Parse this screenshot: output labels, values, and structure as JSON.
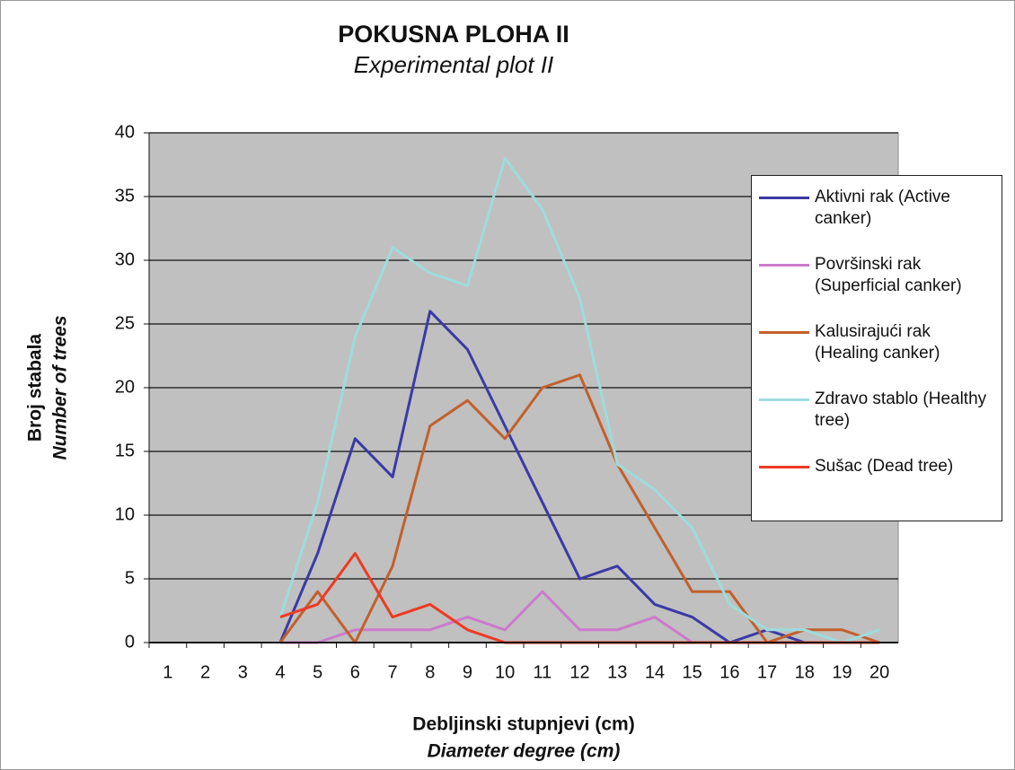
{
  "chart_data": {
    "type": "line",
    "title": "POKUSNA PLOHA II",
    "subtitle": "Experimental plot II",
    "y_label": "Broj stabala",
    "y_label_en": "Number of trees",
    "x_label": "Debljinski stupnjevi (cm)",
    "x_label_en": "Diameter degree (cm)",
    "categories": [
      "1",
      "2",
      "3",
      "4",
      "5",
      "6",
      "7",
      "8",
      "9",
      "10",
      "11",
      "12",
      "13",
      "14",
      "15",
      "16",
      "17",
      "18",
      "19",
      "20"
    ],
    "series": [
      {
        "name": "Aktivni rak (Active canker)",
        "color": "#3a3aa6",
        "values": [
          null,
          null,
          null,
          0,
          7,
          16,
          13,
          26,
          23,
          17,
          11,
          5,
          6,
          3,
          2,
          0,
          1,
          0,
          0,
          0
        ]
      },
      {
        "name": "Površinski rak (Superficial canker)",
        "color": "#cc7acc",
        "values": [
          null,
          null,
          null,
          0,
          0,
          1,
          1,
          1,
          2,
          1,
          4,
          1,
          1,
          2,
          0,
          0,
          0,
          0,
          0,
          0
        ]
      },
      {
        "name": "Kalusirajući rak (Healing canker)",
        "color": "#c2602c",
        "values": [
          null,
          null,
          null,
          0,
          4,
          0,
          6,
          17,
          19,
          16,
          20,
          21,
          14,
          9,
          4,
          4,
          0,
          1,
          1,
          0
        ]
      },
      {
        "name": "Zdravo stablo (Healthy tree)",
        "color": "#9ddcdc",
        "values": [
          null,
          null,
          null,
          2,
          11,
          24,
          31,
          29,
          28,
          38,
          34,
          27,
          14,
          12,
          9,
          3,
          1,
          1,
          0,
          1
        ]
      },
      {
        "name": "Sušac (Dead tree)",
        "color": "#ee3a22",
        "values": [
          null,
          null,
          null,
          2,
          3,
          7,
          2,
          3,
          1,
          0,
          0,
          0,
          0,
          0,
          0,
          0,
          0,
          0,
          0,
          0
        ]
      }
    ],
    "ylim": [
      0,
      40
    ],
    "yticks": [
      0,
      5,
      10,
      15,
      20,
      25,
      30,
      35,
      40
    ],
    "grid": true
  }
}
